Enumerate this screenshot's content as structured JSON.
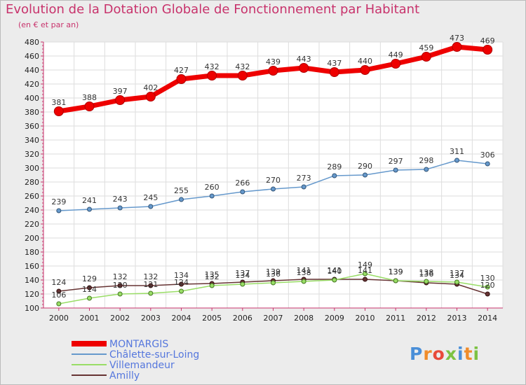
{
  "title": "Evolution de la Dotation Globale de Fonctionnement par Habitant",
  "subtitle": "(en € et par an)",
  "brand": "Proxiti",
  "colors": {
    "MONTARGIS": "#ee0000",
    "Châlette-sur-Loing": "#6699cc",
    "Villemandeur": "#99dd66",
    "Amilly": "#663333",
    "title": "#c8336c"
  },
  "chart_data": {
    "type": "line",
    "title": "Evolution de la Dotation Globale de Fonctionnement par Habitant",
    "subtitle": "(en € et par an)",
    "xlabel": "",
    "ylabel": "",
    "x": [
      "2000",
      "2001",
      "2002",
      "2003",
      "2004",
      "2005",
      "2006",
      "2007",
      "2008",
      "2009",
      "2010",
      "2011",
      "2012",
      "2013",
      "2014"
    ],
    "ylim": [
      100,
      480
    ],
    "yticks": [
      100,
      120,
      140,
      160,
      180,
      200,
      220,
      240,
      260,
      280,
      300,
      320,
      340,
      360,
      380,
      400,
      420,
      440,
      460,
      480
    ],
    "grid": true,
    "legend": "bottom-left",
    "series": [
      {
        "name": "MONTARGIS",
        "values": [
          381,
          388,
          397,
          402,
          427,
          432,
          432,
          439,
          443,
          437,
          440,
          449,
          459,
          473,
          469
        ]
      },
      {
        "name": "Châlette-sur-Loing",
        "values": [
          239,
          241,
          243,
          245,
          255,
          260,
          266,
          270,
          273,
          289,
          290,
          297,
          298,
          311,
          306
        ]
      },
      {
        "name": "Villemandeur",
        "values": [
          106,
          114,
          120,
          121,
          124,
          132,
          134,
          136,
          138,
          140,
          149,
          139,
          138,
          137,
          130
        ]
      },
      {
        "name": "Amilly",
        "values": [
          124,
          129,
          132,
          132,
          134,
          135,
          137,
          139,
          141,
          141,
          141,
          139,
          136,
          134,
          120
        ]
      }
    ]
  }
}
